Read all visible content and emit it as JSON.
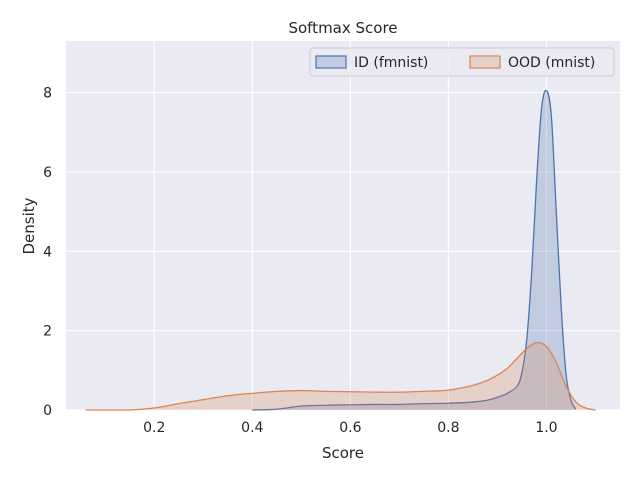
{
  "chart_data": {
    "type": "area",
    "title": "Softmax Score",
    "xlabel": "Score",
    "ylabel": "Density",
    "xlim": [
      0.02,
      1.15
    ],
    "ylim": [
      0,
      9.3
    ],
    "xticks": [
      0.2,
      0.4,
      0.6,
      0.8,
      1.0
    ],
    "xtick_labels": [
      "0.2",
      "0.4",
      "0.6",
      "0.8",
      "1.0"
    ],
    "yticks": [
      0,
      2,
      4,
      6,
      8
    ],
    "ytick_labels": [
      "0",
      "2",
      "4",
      "6",
      "8"
    ],
    "grid": true,
    "legend_position": "top-right",
    "series": [
      {
        "name": "ID (fmnist)",
        "color": "#4c72b0",
        "x": [
          0.4,
          0.45,
          0.5,
          0.55,
          0.6,
          0.65,
          0.7,
          0.75,
          0.8,
          0.85,
          0.88,
          0.9,
          0.92,
          0.94,
          0.95,
          0.96,
          0.97,
          0.98,
          0.99,
          1.0,
          1.01,
          1.02,
          1.03,
          1.04,
          1.05,
          1.06
        ],
        "y": [
          0.0,
          0.02,
          0.1,
          0.12,
          0.13,
          0.14,
          0.14,
          0.16,
          0.17,
          0.2,
          0.25,
          0.32,
          0.42,
          0.6,
          0.95,
          1.8,
          3.5,
          5.8,
          7.6,
          8.05,
          7.4,
          5.0,
          2.6,
          0.9,
          0.25,
          0.02
        ]
      },
      {
        "name": "OOD (mnist)",
        "color": "#dd8452",
        "x": [
          0.06,
          0.15,
          0.2,
          0.25,
          0.3,
          0.35,
          0.4,
          0.45,
          0.5,
          0.55,
          0.6,
          0.65,
          0.7,
          0.75,
          0.8,
          0.85,
          0.88,
          0.9,
          0.92,
          0.94,
          0.96,
          0.98,
          1.0,
          1.02,
          1.04,
          1.06,
          1.08,
          1.1
        ],
        "y": [
          0.0,
          0.0,
          0.05,
          0.16,
          0.26,
          0.36,
          0.42,
          0.47,
          0.49,
          0.47,
          0.46,
          0.45,
          0.45,
          0.47,
          0.5,
          0.62,
          0.75,
          0.88,
          1.05,
          1.3,
          1.55,
          1.7,
          1.6,
          1.2,
          0.6,
          0.2,
          0.05,
          0.0
        ]
      }
    ]
  }
}
